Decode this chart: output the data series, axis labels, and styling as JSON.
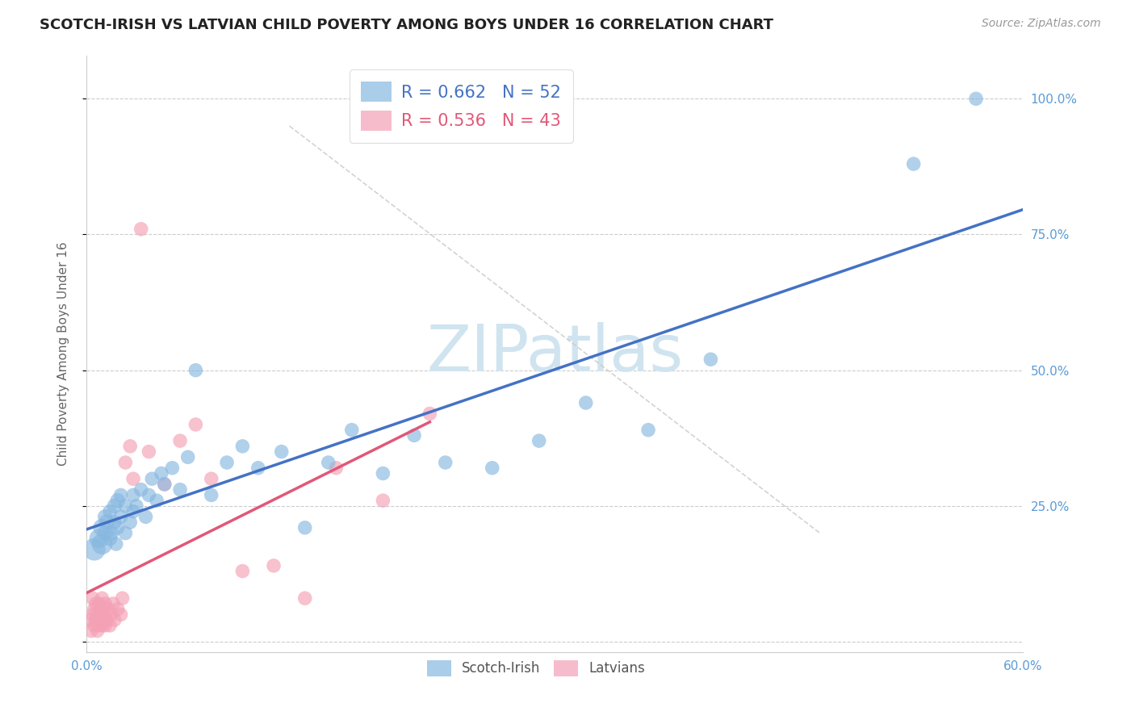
{
  "title": "SCOTCH-IRISH VS LATVIAN CHILD POVERTY AMONG BOYS UNDER 16 CORRELATION CHART",
  "source": "Source: ZipAtlas.com",
  "ylabel": "Child Poverty Among Boys Under 16",
  "xlim": [
    0.0,
    0.6
  ],
  "ylim": [
    -0.02,
    1.08
  ],
  "ytick_positions": [
    0.0,
    0.25,
    0.5,
    0.75,
    1.0
  ],
  "ytick_labels": [
    "",
    "25.0%",
    "50.0%",
    "75.0%",
    "100.0%"
  ],
  "xtick_positions": [
    0.0,
    0.1,
    0.2,
    0.3,
    0.4,
    0.5,
    0.6
  ],
  "xtick_labels": [
    "0.0%",
    "",
    "",
    "",
    "",
    "",
    "60.0%"
  ],
  "scotch_irish_color": "#87b8e0",
  "latvian_color": "#f4a0b5",
  "scotch_irish_line_color": "#4472c4",
  "latvian_line_color": "#e05878",
  "grid_color": "#cccccc",
  "watermark_text": "ZIPatlas",
  "watermark_color": "#d0e4f0",
  "legend_R_scotch": "R = 0.662",
  "legend_N_scotch": "N = 52",
  "legend_R_latvian": "R = 0.536",
  "legend_N_latvian": "N = 43",
  "scotch_irish_x": [
    0.005,
    0.008,
    0.01,
    0.01,
    0.012,
    0.012,
    0.013,
    0.015,
    0.015,
    0.016,
    0.018,
    0.018,
    0.019,
    0.02,
    0.02,
    0.022,
    0.022,
    0.025,
    0.025,
    0.028,
    0.03,
    0.03,
    0.032,
    0.035,
    0.038,
    0.04,
    0.042,
    0.045,
    0.048,
    0.05,
    0.055,
    0.06,
    0.065,
    0.07,
    0.08,
    0.09,
    0.1,
    0.11,
    0.125,
    0.14,
    0.155,
    0.17,
    0.19,
    0.21,
    0.23,
    0.26,
    0.29,
    0.32,
    0.36,
    0.4,
    0.53,
    0.57
  ],
  "scotch_irish_y": [
    0.17,
    0.19,
    0.18,
    0.21,
    0.2,
    0.23,
    0.22,
    0.19,
    0.24,
    0.2,
    0.22,
    0.25,
    0.18,
    0.21,
    0.26,
    0.23,
    0.27,
    0.2,
    0.25,
    0.22,
    0.24,
    0.27,
    0.25,
    0.28,
    0.23,
    0.27,
    0.3,
    0.26,
    0.31,
    0.29,
    0.32,
    0.28,
    0.34,
    0.5,
    0.27,
    0.33,
    0.36,
    0.32,
    0.35,
    0.21,
    0.33,
    0.39,
    0.31,
    0.38,
    0.33,
    0.32,
    0.37,
    0.44,
    0.39,
    0.52,
    0.88,
    1.0
  ],
  "scotch_irish_sizes": [
    400,
    300,
    350,
    250,
    200,
    180,
    200,
    180,
    160,
    180,
    160,
    180,
    160,
    160,
    180,
    160,
    160,
    160,
    160,
    160,
    160,
    160,
    160,
    160,
    160,
    160,
    160,
    160,
    160,
    160,
    160,
    160,
    160,
    160,
    160,
    160,
    160,
    160,
    160,
    160,
    160,
    160,
    160,
    160,
    160,
    160,
    160,
    160,
    160,
    160,
    160,
    160
  ],
  "latvian_x": [
    0.002,
    0.003,
    0.004,
    0.004,
    0.005,
    0.005,
    0.006,
    0.006,
    0.007,
    0.007,
    0.008,
    0.008,
    0.009,
    0.009,
    0.01,
    0.01,
    0.011,
    0.012,
    0.012,
    0.013,
    0.014,
    0.015,
    0.016,
    0.017,
    0.018,
    0.02,
    0.022,
    0.023,
    0.025,
    0.028,
    0.03,
    0.035,
    0.04,
    0.05,
    0.06,
    0.07,
    0.08,
    0.1,
    0.12,
    0.14,
    0.16,
    0.19,
    0.22
  ],
  "latvian_y": [
    0.04,
    0.02,
    0.05,
    0.08,
    0.03,
    0.06,
    0.04,
    0.07,
    0.02,
    0.05,
    0.03,
    0.07,
    0.04,
    0.06,
    0.03,
    0.08,
    0.05,
    0.03,
    0.07,
    0.04,
    0.06,
    0.03,
    0.05,
    0.07,
    0.04,
    0.06,
    0.05,
    0.08,
    0.33,
    0.36,
    0.3,
    0.76,
    0.35,
    0.29,
    0.37,
    0.4,
    0.3,
    0.13,
    0.14,
    0.08,
    0.32,
    0.26,
    0.42
  ],
  "latvian_sizes": [
    160,
    160,
    160,
    160,
    160,
    160,
    160,
    160,
    160,
    160,
    160,
    160,
    160,
    160,
    160,
    160,
    160,
    160,
    160,
    160,
    160,
    160,
    160,
    160,
    160,
    160,
    160,
    160,
    160,
    160,
    160,
    160,
    160,
    160,
    160,
    160,
    160,
    160,
    160,
    160,
    160,
    160,
    160
  ],
  "dashed_line_x": [
    0.13,
    0.47
  ],
  "dashed_line_y": [
    0.95,
    0.2
  ]
}
